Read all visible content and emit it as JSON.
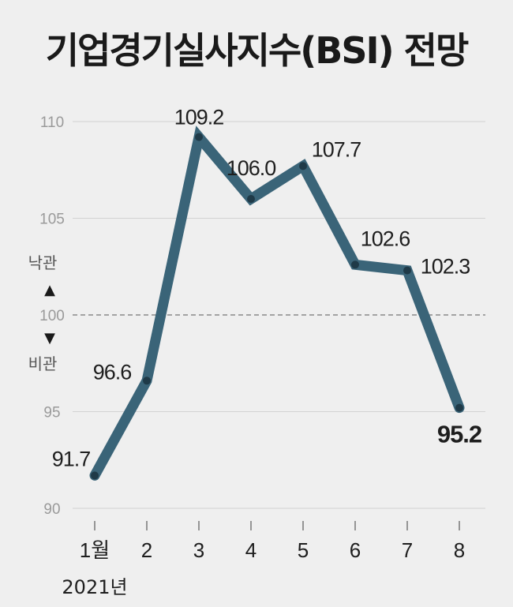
{
  "chart_data": {
    "type": "line",
    "title": "기업경기실사지수(BSI) 전망",
    "categories": [
      "1월",
      "2",
      "3",
      "4",
      "5",
      "6",
      "7",
      "8"
    ],
    "x_caption": "2021년",
    "values": [
      91.7,
      96.6,
      109.2,
      106.0,
      107.7,
      102.6,
      102.3,
      95.2
    ],
    "value_labels": [
      "91.7",
      "96.6",
      "109.2",
      "106.0",
      "107.7",
      "102.6",
      "102.3",
      "95.2"
    ],
    "yticks": [
      90,
      95,
      100,
      105,
      110
    ],
    "ylim": [
      90,
      110
    ],
    "reference_line": 100,
    "upper_label": "낙관",
    "lower_label": "비관",
    "up_arrow": "▲",
    "down_arrow": "▼",
    "grid": true,
    "line_color": "#3a6478",
    "grid_color": "#d2d2d2",
    "reference_color": "#8a8a8a"
  }
}
